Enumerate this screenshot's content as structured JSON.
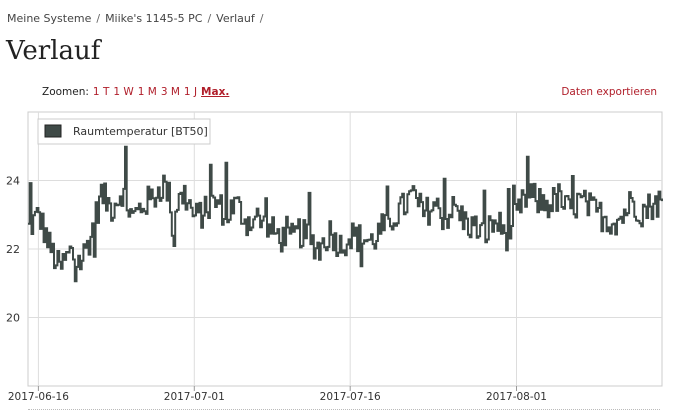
{
  "breadcrumb": {
    "items": [
      "Meine Systeme",
      "Miike's 1145-5 PC",
      "Verlauf"
    ]
  },
  "page_title": "Verlauf",
  "zoom": {
    "label": "Zoomen:",
    "options": [
      "1 T",
      "1 W",
      "1 M",
      "3 M",
      "1 J",
      "Max."
    ],
    "active": "Max."
  },
  "export_label": "Daten exportieren",
  "chart_data": {
    "type": "line",
    "title": "",
    "xlabel": "",
    "ylabel": "",
    "legend": {
      "position": "top-left"
    },
    "grid": true,
    "x_range": [
      "2017-06-15",
      "2017-08-15"
    ],
    "ylim": [
      18,
      26
    ],
    "y_ticks": [
      20,
      22,
      24
    ],
    "x_ticks": [
      "2017-06-16",
      "2017-07-01",
      "2017-07-16",
      "2017-08-01"
    ],
    "series": [
      {
        "name": "Raumtemperatur [BT50]",
        "color": "#3f4a47",
        "points": [
          [
            "2017-06-15",
            22.6
          ],
          [
            "2017-06-16",
            23.0
          ],
          [
            "2017-06-17",
            22.1
          ],
          [
            "2017-06-18",
            21.4
          ],
          [
            "2017-06-19",
            21.9
          ],
          [
            "2017-06-20",
            21.6
          ],
          [
            "2017-06-21",
            22.4
          ],
          [
            "2017-06-22",
            23.6
          ],
          [
            "2017-06-23",
            23.2
          ],
          [
            "2017-06-24",
            23.7
          ],
          [
            "2017-06-25",
            22.9
          ],
          [
            "2017-06-26",
            23.3
          ],
          [
            "2017-06-27",
            23.5
          ],
          [
            "2017-06-28",
            23.9
          ],
          [
            "2017-06-29",
            23.2
          ],
          [
            "2017-06-30",
            23.6
          ],
          [
            "2017-07-01",
            22.9
          ],
          [
            "2017-07-02",
            23.1
          ],
          [
            "2017-07-03",
            23.4
          ],
          [
            "2017-07-04",
            23.0
          ],
          [
            "2017-07-05",
            23.3
          ],
          [
            "2017-07-06",
            22.8
          ],
          [
            "2017-07-07",
            22.9
          ],
          [
            "2017-07-08",
            22.6
          ],
          [
            "2017-07-09",
            22.4
          ],
          [
            "2017-07-10",
            22.2
          ],
          [
            "2017-07-11",
            22.5
          ],
          [
            "2017-07-12",
            22.3
          ],
          [
            "2017-07-13",
            22.0
          ],
          [
            "2017-07-14",
            22.5
          ],
          [
            "2017-07-15",
            22.1
          ],
          [
            "2017-07-16",
            22.4
          ],
          [
            "2017-07-17",
            22.3
          ],
          [
            "2017-07-18",
            22.2
          ],
          [
            "2017-07-19",
            22.6
          ],
          [
            "2017-07-20",
            22.9
          ],
          [
            "2017-07-21",
            23.2
          ],
          [
            "2017-07-22",
            23.6
          ],
          [
            "2017-07-23",
            23.0
          ],
          [
            "2017-07-24",
            23.3
          ],
          [
            "2017-07-25",
            22.9
          ],
          [
            "2017-07-26",
            23.2
          ],
          [
            "2017-07-27",
            22.8
          ],
          [
            "2017-07-28",
            22.6
          ],
          [
            "2017-07-29",
            22.5
          ],
          [
            "2017-07-30",
            22.8
          ],
          [
            "2017-07-31",
            22.4
          ],
          [
            "2017-08-01",
            23.0
          ],
          [
            "2017-08-02",
            23.6
          ],
          [
            "2017-08-03",
            23.4
          ],
          [
            "2017-08-04",
            23.3
          ],
          [
            "2017-08-05",
            23.5
          ],
          [
            "2017-08-06",
            23.1
          ],
          [
            "2017-08-07",
            23.4
          ],
          [
            "2017-08-08",
            23.2
          ],
          [
            "2017-08-09",
            23.0
          ],
          [
            "2017-08-10",
            22.8
          ],
          [
            "2017-08-11",
            22.9
          ],
          [
            "2017-08-12",
            23.4
          ],
          [
            "2017-08-13",
            23.1
          ],
          [
            "2017-08-14",
            23.3
          ],
          [
            "2017-08-15",
            23.4
          ]
        ]
      }
    ]
  }
}
